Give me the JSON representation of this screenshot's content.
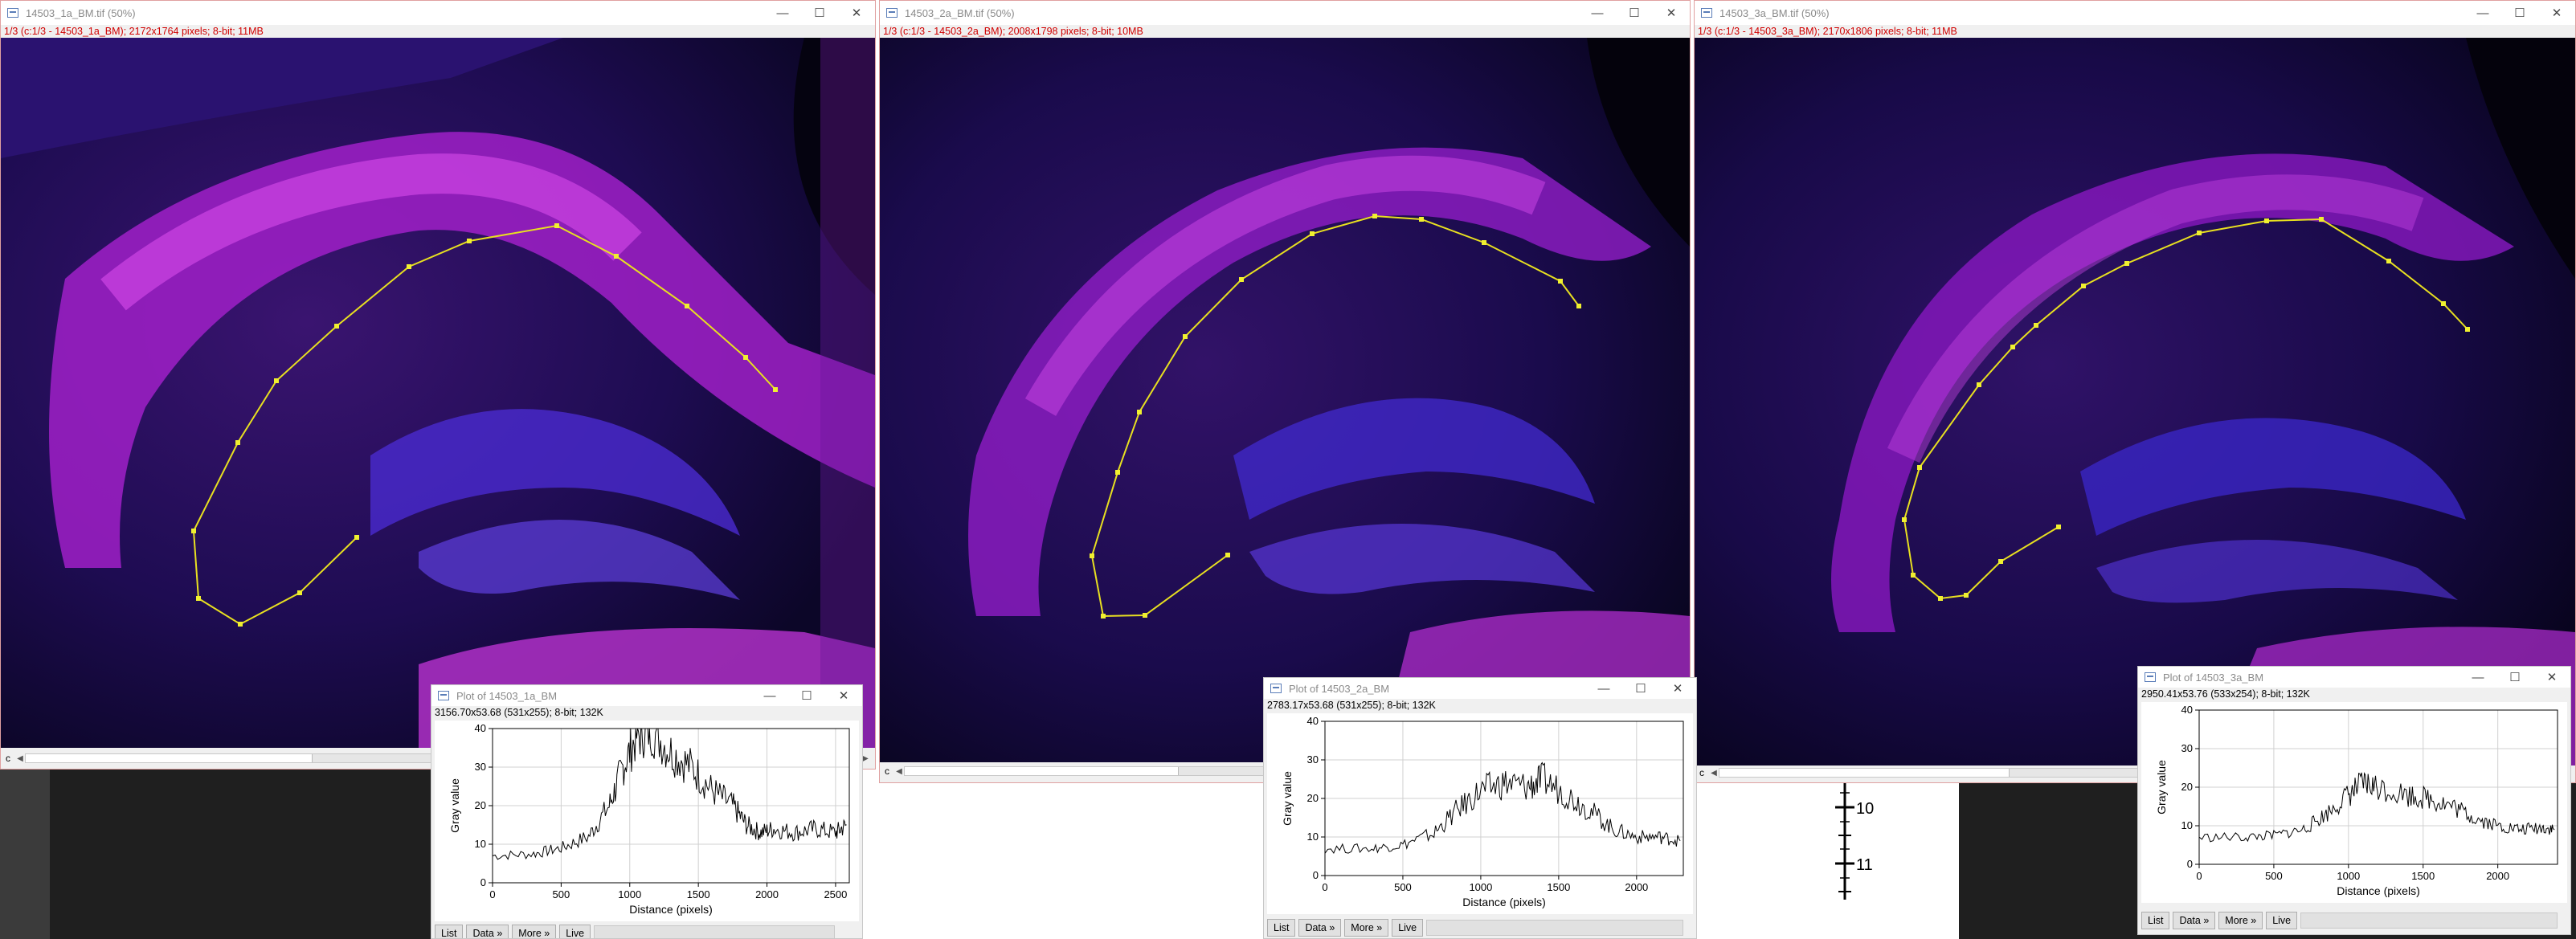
{
  "windows": [
    {
      "title": "14503_1a_BM.tif (50%)",
      "info": "1/3 (c:1/3 - 14503_1a_BM); 2172x1764 pixels; 8-bit; 11MB",
      "channel": "c"
    },
    {
      "title": "14503_2a_BM.tif (50%)",
      "info": "1/3 (c:1/3 - 14503_2a_BM); 2008x1798 pixels; 8-bit; 10MB",
      "channel": "c"
    },
    {
      "title": "14503_3a_BM.tif (50%)",
      "info": "1/3 (c:1/3 - 14503_3a_BM); 2170x1806 pixels; 8-bit; 11MB",
      "channel": "c"
    }
  ],
  "window_controls": {
    "minimize": "—",
    "maximize": "☐",
    "close": "✕"
  },
  "plots": [
    {
      "title": "Plot of 14503_1a_BM",
      "info": "3156.70x53.68  (531x255); 8-bit; 132K",
      "buttons": [
        "List",
        "Data »",
        "More »",
        "Live"
      ]
    },
    {
      "title": "Plot of 14503_2a_BM",
      "info": "2783.17x53.68  (531x255); 8-bit; 132K",
      "buttons": [
        "List",
        "Data »",
        "More »",
        "Live"
      ]
    },
    {
      "title": "Plot of 14503_3a_BM",
      "info": "2950.41x53.76  (533x254); 8-bit; 132K",
      "buttons": [
        "List",
        "Data »",
        "More »",
        "Live"
      ]
    }
  ],
  "ruler": {
    "labels": [
      "10",
      "11"
    ]
  },
  "icons": {
    "window": "imagej-window-icon",
    "scroll_left": "scroll-left-arrow-icon",
    "scroll_right": "scroll-right-arrow-icon"
  },
  "colors": {
    "roi": "#e8e020",
    "title_info": "#d00000",
    "plot_line": "#000000"
  },
  "chart_data": [
    {
      "type": "line",
      "xlabel": "Distance (pixels)",
      "ylabel": "Gray value",
      "xlim": [
        0,
        2600
      ],
      "ylim": [
        0,
        40
      ],
      "xticks": [
        0,
        500,
        1000,
        1500,
        2000,
        2500
      ],
      "yticks": [
        0,
        10,
        20,
        30,
        40
      ],
      "series": [
        {
          "values": [
            [
              0,
              7
            ],
            [
              300,
              7.5
            ],
            [
              500,
              9
            ],
            [
              700,
              12
            ],
            [
              850,
              20
            ],
            [
              950,
              30
            ],
            [
              1050,
              38
            ],
            [
              1150,
              40
            ],
            [
              1300,
              34
            ],
            [
              1450,
              30
            ],
            [
              1600,
              24
            ],
            [
              1750,
              20
            ],
            [
              1850,
              15
            ],
            [
              1950,
              13
            ],
            [
              2050,
              14
            ],
            [
              2200,
              13
            ],
            [
              2350,
              14
            ],
            [
              2500,
              13
            ],
            [
              2580,
              15
            ]
          ]
        }
      ]
    },
    {
      "type": "line",
      "xlabel": "Distance (pixels)",
      "ylabel": "Gray value",
      "xlim": [
        0,
        2300
      ],
      "ylim": [
        0,
        40
      ],
      "xticks": [
        0,
        500,
        1000,
        1500,
        2000
      ],
      "yticks": [
        0,
        10,
        20,
        30,
        40
      ],
      "series": [
        {
          "values": [
            [
              0,
              7
            ],
            [
              300,
              7
            ],
            [
              500,
              8
            ],
            [
              700,
              11
            ],
            [
              850,
              17
            ],
            [
              1000,
              22
            ],
            [
              1150,
              24
            ],
            [
              1300,
              23
            ],
            [
              1400,
              25
            ],
            [
              1550,
              21
            ],
            [
              1700,
              17
            ],
            [
              1850,
              12
            ],
            [
              2000,
              10
            ],
            [
              2150,
              10
            ],
            [
              2280,
              9
            ]
          ]
        }
      ]
    },
    {
      "type": "line",
      "xlabel": "Distance (pixels)",
      "ylabel": "Gray value",
      "xlim": [
        0,
        2400
      ],
      "ylim": [
        0,
        40
      ],
      "xticks": [
        0,
        500,
        1000,
        1500,
        2000
      ],
      "yticks": [
        0,
        10,
        20,
        30,
        40
      ],
      "series": [
        {
          "values": [
            [
              0,
              7
            ],
            [
              300,
              7
            ],
            [
              500,
              7.5
            ],
            [
              700,
              9
            ],
            [
              850,
              13
            ],
            [
              1000,
              18
            ],
            [
              1100,
              21
            ],
            [
              1200,
              20
            ],
            [
              1400,
              18
            ],
            [
              1550,
              17
            ],
            [
              1700,
              15
            ],
            [
              1850,
              12
            ],
            [
              2000,
              10
            ],
            [
              2150,
              9
            ],
            [
              2300,
              9.5
            ],
            [
              2380,
              9
            ]
          ]
        }
      ]
    }
  ]
}
